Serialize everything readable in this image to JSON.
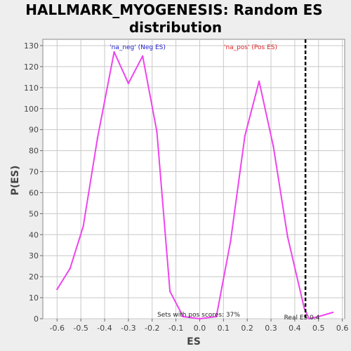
{
  "chart_data": {
    "type": "line",
    "title_lines": [
      "HALLMARK_MYOGENESIS: Random ES",
      "distribution"
    ],
    "xlabel": "ES",
    "ylabel": "P(ES)",
    "xlim": [
      -0.66,
      0.61
    ],
    "ylim": [
      0,
      133
    ],
    "xticks": [
      -0.6,
      -0.5,
      -0.4,
      -0.3,
      -0.2,
      -0.1,
      0.0,
      0.1,
      0.2,
      0.3,
      0.4,
      0.5,
      0.6
    ],
    "xtick_labels": [
      "-0.6",
      "-0.5",
      "-0.4",
      "-0.3",
      "-0.2",
      "-0.1",
      "0.0",
      "0.1",
      "0.2",
      "0.3",
      "0.4",
      "0.5",
      "0.6"
    ],
    "yticks": [
      0,
      10,
      20,
      30,
      40,
      50,
      60,
      70,
      80,
      90,
      100,
      110,
      120,
      130
    ],
    "ytick_labels": [
      "0",
      "10",
      "20",
      "30",
      "40",
      "50",
      "60",
      "70",
      "80",
      "90",
      "100",
      "110",
      "120",
      "130"
    ],
    "grid": true,
    "series": [
      {
        "color": "#ee44ee",
        "x": [
          -0.6,
          -0.545,
          -0.49,
          -0.43,
          -0.36,
          -0.3,
          -0.24,
          -0.18,
          -0.125,
          -0.07,
          0.0,
          0.07,
          0.13,
          0.19,
          0.25,
          0.31,
          0.37,
          0.44,
          0.46,
          0.5,
          0.56
        ],
        "y": [
          14,
          24,
          44,
          86,
          127,
          112,
          125,
          89,
          13,
          1,
          0,
          1,
          37,
          87,
          113,
          82,
          39,
          5,
          0,
          1,
          3
        ]
      }
    ],
    "real_es": {
      "x": 0.445,
      "color": "#000000"
    },
    "annotations": {
      "neg_label": "'na_neg' (Neg ES)",
      "neg_color": "#2222cc",
      "pos_label": "'na_pos' (Pos ES)",
      "pos_color": "#dd2222",
      "sets_pos": "Sets with pos scores: 37%",
      "real_es": "Real ES 0.4"
    },
    "colors": {
      "background": "#eeeeee",
      "plot_background": "#ffffff",
      "grid": "#c8c8c8"
    }
  }
}
